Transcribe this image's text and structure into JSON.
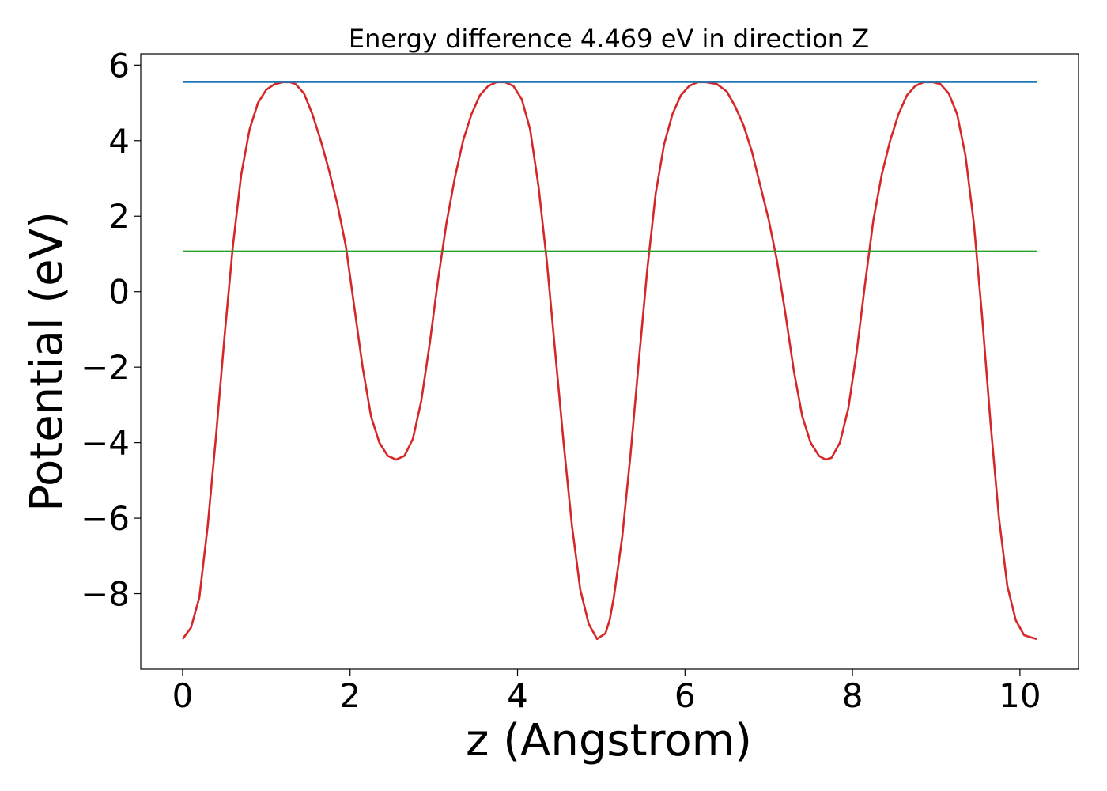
{
  "chart_data": {
    "type": "line",
    "title": "Energy difference 4.469 eV in direction Z",
    "xlabel": "z (Angstrom)",
    "ylabel": "Potential (eV)",
    "xlim": [
      -0.5,
      10.7
    ],
    "ylim": [
      -10.0,
      6.3
    ],
    "xticks": [
      {
        "value": 0,
        "label": "0"
      },
      {
        "value": 2,
        "label": "2"
      },
      {
        "value": 4,
        "label": "4"
      },
      {
        "value": 6,
        "label": "6"
      },
      {
        "value": 8,
        "label": "8"
      },
      {
        "value": 10,
        "label": "10"
      }
    ],
    "yticks": [
      {
        "value": 6,
        "label": "6"
      },
      {
        "value": 4,
        "label": "4"
      },
      {
        "value": 2,
        "label": "2"
      },
      {
        "value": 0,
        "label": "0"
      },
      {
        "value": -2,
        "label": "−2"
      },
      {
        "value": -4,
        "label": "−4"
      },
      {
        "value": -6,
        "label": "−6"
      },
      {
        "value": -8,
        "label": "−8"
      }
    ],
    "grid": false,
    "legend": "none",
    "series": [
      {
        "color": "#d62728",
        "x": [
          0,
          0.1,
          0.2,
          0.3,
          0.4,
          0.5,
          0.6,
          0.7,
          0.8,
          0.9,
          1.0,
          1.1,
          1.2,
          1.28,
          1.35,
          1.45,
          1.55,
          1.65,
          1.75,
          1.85,
          1.95,
          2.05,
          2.15,
          2.25,
          2.35,
          2.45,
          2.55,
          2.65,
          2.75,
          2.85,
          2.95,
          3.05,
          3.15,
          3.25,
          3.35,
          3.45,
          3.55,
          3.65,
          3.75,
          3.85,
          3.95,
          4.05,
          4.15,
          4.25,
          4.35,
          4.45,
          4.55,
          4.65,
          4.75,
          4.85,
          4.95,
          5.05,
          5.1,
          5.15,
          5.25,
          5.35,
          5.45,
          5.55,
          5.65,
          5.75,
          5.85,
          5.95,
          6.05,
          6.15,
          6.25,
          6.38,
          6.5,
          6.6,
          6.7,
          6.8,
          6.9,
          7.0,
          7.1,
          7.2,
          7.3,
          7.4,
          7.5,
          7.6,
          7.68,
          7.75,
          7.85,
          7.95,
          8.05,
          8.15,
          8.25,
          8.35,
          8.45,
          8.55,
          8.65,
          8.75,
          8.85,
          8.96,
          9.05,
          9.15,
          9.25,
          9.35,
          9.45,
          9.55,
          9.65,
          9.75,
          9.85,
          9.95,
          10.05,
          10.12,
          10.2
        ],
        "y": [
          -9.2,
          -8.9,
          -8.1,
          -6.2,
          -3.8,
          -1.2,
          1.2,
          3.1,
          4.3,
          5.0,
          5.35,
          5.5,
          5.55,
          5.55,
          5.5,
          5.25,
          4.7,
          4.0,
          3.2,
          2.3,
          1.2,
          -0.4,
          -2.0,
          -3.3,
          -4.0,
          -4.35,
          -4.45,
          -4.35,
          -3.9,
          -2.9,
          -1.4,
          0.3,
          1.8,
          3.0,
          4.0,
          4.7,
          5.2,
          5.45,
          5.55,
          5.55,
          5.45,
          5.1,
          4.3,
          2.8,
          0.8,
          -1.6,
          -4.0,
          -6.2,
          -7.9,
          -8.8,
          -9.2,
          -9.05,
          -8.7,
          -8.1,
          -6.5,
          -4.3,
          -1.8,
          0.6,
          2.6,
          3.9,
          4.7,
          5.2,
          5.45,
          5.55,
          5.55,
          5.5,
          5.3,
          4.9,
          4.4,
          3.7,
          2.8,
          1.9,
          0.8,
          -0.6,
          -2.1,
          -3.3,
          -4.0,
          -4.35,
          -4.45,
          -4.4,
          -4.0,
          -3.1,
          -1.6,
          0.2,
          1.9,
          3.1,
          4.0,
          4.7,
          5.2,
          5.45,
          5.55,
          5.55,
          5.5,
          5.25,
          4.7,
          3.6,
          1.8,
          -0.7,
          -3.5,
          -6.0,
          -7.8,
          -8.7,
          -9.1,
          -9.15,
          -9.2
        ]
      },
      {
        "color": "#1f77b4",
        "x": [
          0,
          10.2
        ],
        "y": [
          5.55,
          5.55
        ]
      },
      {
        "color": "#2ca02c",
        "x": [
          0,
          10.2
        ],
        "y": [
          1.07,
          1.07
        ]
      }
    ]
  }
}
